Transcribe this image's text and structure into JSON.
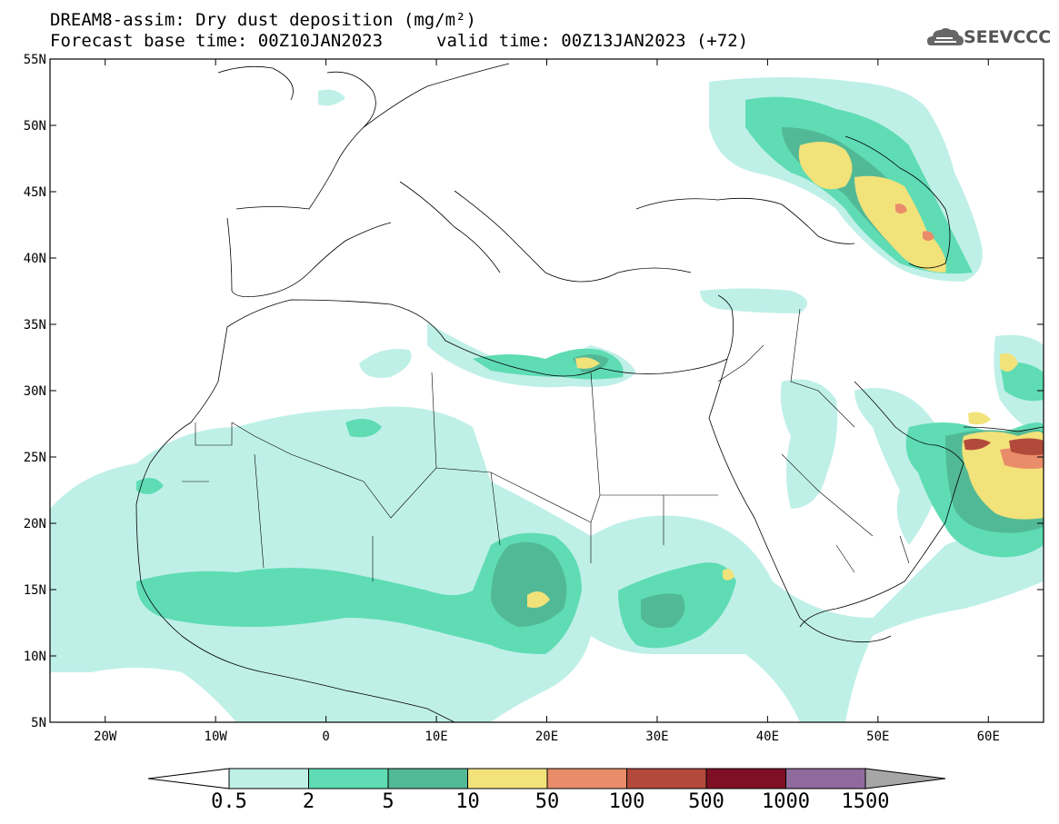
{
  "title": {
    "line1": "DREAM8-assim: Dry dust deposition (mg/m²)",
    "line2": "Forecast base time: 00Z10JAN2023",
    "valid": "valid time: 00Z13JAN2023 (+72)"
  },
  "logo": {
    "text": "SEEVCCC",
    "icon": "cloud-logo-icon"
  },
  "map": {
    "lon_range": [
      -25,
      65
    ],
    "lat_range": [
      5,
      55
    ],
    "lon_ticks": [
      "20W",
      "10W",
      "0",
      "10E",
      "20E",
      "30E",
      "40E",
      "50E",
      "60E"
    ],
    "lat_ticks": [
      "55N",
      "50N",
      "45N",
      "40N",
      "35N",
      "30N",
      "25N",
      "20N",
      "15N",
      "10N",
      "5N"
    ]
  },
  "colorbar": {
    "levels": [
      "0.5",
      "2",
      "5",
      "10",
      "50",
      "100",
      "500",
      "1000",
      "1500"
    ],
    "colors": [
      "#bff0e8",
      "#5fdcb4",
      "#52b996",
      "#f2e27a",
      "#e98c6a",
      "#b24a3c",
      "#7e0f24",
      "#8f6a9c"
    ],
    "under_color": "#ffffff",
    "over_color": "#a6a6a6"
  }
}
